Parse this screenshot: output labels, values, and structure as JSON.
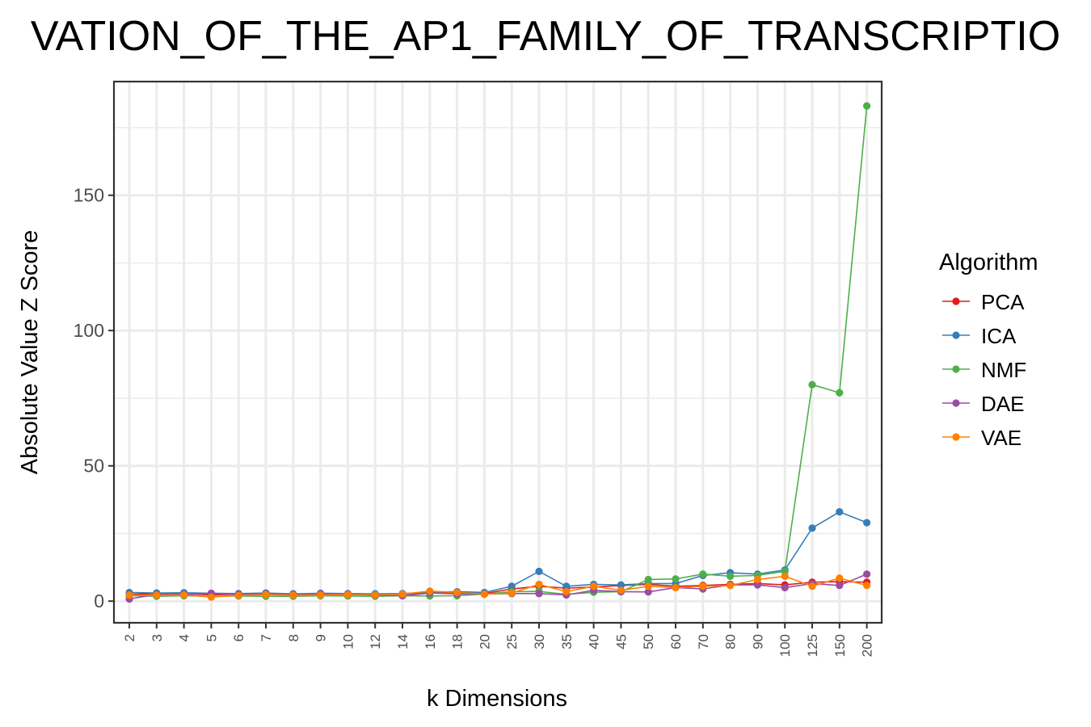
{
  "chart_data": {
    "type": "line",
    "title": "VATION_OF_THE_AP1_FAMILY_OF_TRANSCRIPTIO",
    "xlabel": "k Dimensions",
    "ylabel": "Absolute Value Z Score",
    "ylim": [
      -8,
      192
    ],
    "yticks": [
      0,
      50,
      100,
      150
    ],
    "grid": true,
    "legend": {
      "title": "Algorithm",
      "position": "right"
    },
    "categories": [
      "2",
      "3",
      "4",
      "5",
      "6",
      "7",
      "8",
      "9",
      "10",
      "12",
      "14",
      "16",
      "18",
      "20",
      "25",
      "30",
      "35",
      "40",
      "45",
      "50",
      "60",
      "70",
      "80",
      "90",
      "100",
      "125",
      "150",
      "200"
    ],
    "series": [
      {
        "name": "PCA",
        "color": "#e41a1c",
        "values": [
          2.5,
          2.8,
          2.6,
          2.4,
          2.5,
          2.7,
          2.3,
          2.6,
          2.5,
          2.3,
          2.6,
          3.2,
          3.0,
          2.8,
          4.5,
          5.5,
          4.8,
          5.2,
          5.8,
          6.2,
          5.5,
          5.8,
          6.2,
          6.5,
          6.0,
          7.0,
          7.2,
          7.0
        ]
      },
      {
        "name": "ICA",
        "color": "#377eb8",
        "values": [
          3.2,
          3.0,
          3.1,
          2.9,
          2.8,
          3.0,
          2.7,
          2.9,
          2.8,
          2.7,
          2.8,
          3.3,
          3.5,
          3.2,
          5.5,
          11.0,
          5.5,
          6.2,
          6.0,
          6.5,
          6.5,
          9.5,
          10.5,
          10.0,
          11.5,
          27.0,
          33.0,
          29.0
        ]
      },
      {
        "name": "NMF",
        "color": "#4daf4a",
        "values": [
          2.0,
          1.8,
          2.0,
          1.8,
          1.9,
          1.8,
          1.8,
          2.0,
          1.9,
          1.8,
          2.0,
          1.9,
          2.0,
          2.6,
          3.5,
          3.6,
          2.5,
          3.3,
          3.5,
          8.0,
          8.2,
          10.0,
          9.2,
          9.5,
          11.0,
          80.0,
          77.0,
          183.0
        ]
      },
      {
        "name": "DAE",
        "color": "#984ea3",
        "values": [
          0.8,
          2.5,
          2.5,
          2.9,
          2.5,
          2.8,
          2.4,
          2.7,
          2.5,
          2.2,
          2.0,
          3.0,
          2.7,
          2.6,
          2.8,
          2.8,
          2.3,
          4.0,
          3.5,
          3.4,
          5.0,
          4.5,
          6.0,
          6.0,
          5.0,
          6.5,
          5.8,
          10.0
        ]
      },
      {
        "name": "VAE",
        "color": "#ff7f00",
        "values": [
          2.2,
          2.2,
          2.3,
          1.5,
          2.1,
          2.4,
          2.2,
          2.3,
          2.4,
          2.3,
          2.6,
          3.7,
          3.2,
          2.6,
          3.0,
          6.2,
          3.5,
          5.5,
          4.0,
          5.5,
          5.0,
          5.5,
          5.8,
          8.0,
          9.2,
          5.5,
          8.5,
          5.8
        ]
      }
    ]
  }
}
